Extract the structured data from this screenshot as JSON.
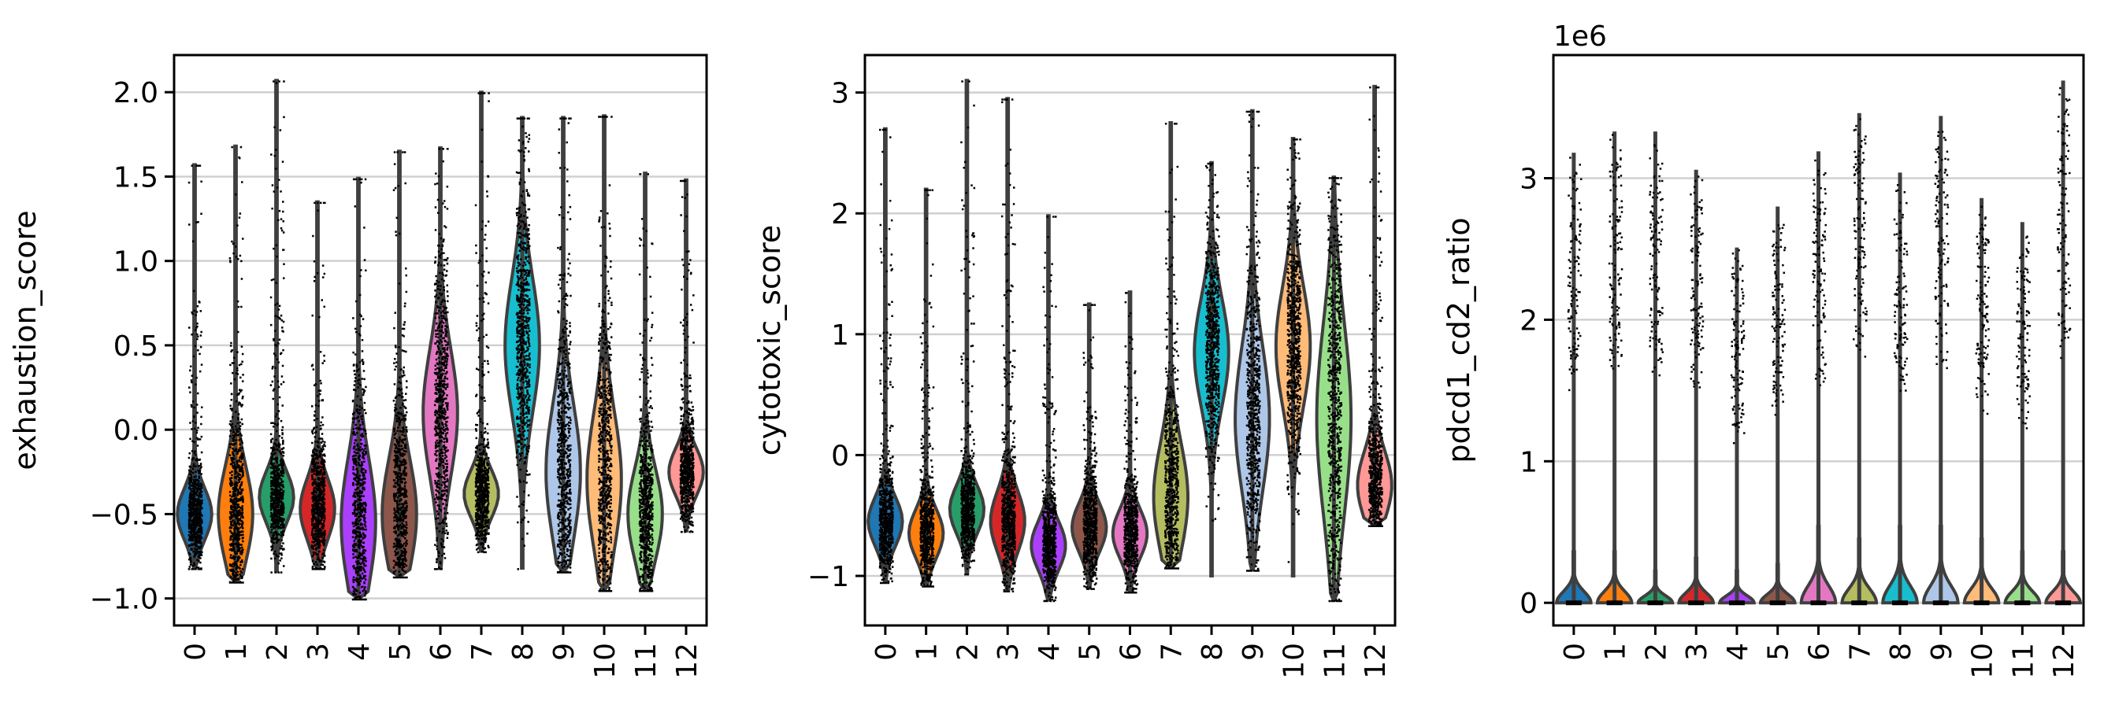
{
  "chart_data": [
    {
      "type": "violin",
      "ylabel": "exhaustion_score",
      "categories": [
        "0",
        "1",
        "2",
        "3",
        "4",
        "5",
        "6",
        "7",
        "8",
        "9",
        "10",
        "11",
        "12"
      ],
      "ylim": [
        -1.16,
        2.22
      ],
      "yticks": [
        -1.0,
        -0.5,
        0.0,
        0.5,
        1.0,
        1.5,
        2.0
      ],
      "ytick_labels": [
        "−1.0",
        "−0.5",
        "0.0",
        "0.5",
        "1.0",
        "1.5",
        "2.0"
      ],
      "grid": "y",
      "series": [
        {
          "min": -0.82,
          "max": 1.57,
          "median": -0.5,
          "spread": 0.15
        },
        {
          "min": -0.9,
          "max": 1.68,
          "median": -0.5,
          "spread": 0.28
        },
        {
          "min": -0.84,
          "max": 2.07,
          "median": -0.4,
          "spread": 0.15
        },
        {
          "min": -0.82,
          "max": 1.35,
          "median": -0.47,
          "spread": 0.18
        },
        {
          "min": -1.0,
          "max": 1.49,
          "median": -0.55,
          "spread": 0.38
        },
        {
          "min": -0.87,
          "max": 1.65,
          "median": -0.5,
          "spread": 0.33
        },
        {
          "min": -0.82,
          "max": 1.67,
          "median": 0.1,
          "spread": 0.38
        },
        {
          "min": -0.72,
          "max": 2.0,
          "median": -0.38,
          "spread": 0.14
        },
        {
          "min": -0.82,
          "max": 1.85,
          "median": 0.5,
          "spread": 0.4
        },
        {
          "min": -0.84,
          "max": 1.85,
          "median": -0.25,
          "spread": 0.4
        },
        {
          "min": -0.95,
          "max": 1.86,
          "median": -0.3,
          "spread": 0.4
        },
        {
          "min": -0.95,
          "max": 1.52,
          "median": -0.5,
          "spread": 0.27
        },
        {
          "min": -0.6,
          "max": 1.48,
          "median": -0.25,
          "spread": 0.14
        }
      ]
    },
    {
      "type": "violin",
      "ylabel": "cytotoxic_score",
      "categories": [
        "0",
        "1",
        "2",
        "3",
        "4",
        "5",
        "6",
        "7",
        "8",
        "9",
        "10",
        "11",
        "12"
      ],
      "ylim": [
        -1.41,
        3.31
      ],
      "yticks": [
        -1,
        0,
        1,
        2,
        3
      ],
      "ytick_labels": [
        "−1",
        "0",
        "1",
        "2",
        "3"
      ],
      "grid": "y",
      "series": [
        {
          "min": -1.05,
          "max": 2.7,
          "median": -0.55,
          "spread": 0.2
        },
        {
          "min": -1.08,
          "max": 2.2,
          "median": -0.65,
          "spread": 0.2
        },
        {
          "min": -0.98,
          "max": 3.1,
          "median": -0.45,
          "spread": 0.2
        },
        {
          "min": -1.12,
          "max": 2.95,
          "median": -0.55,
          "spread": 0.25
        },
        {
          "min": -1.2,
          "max": 1.98,
          "median": -0.75,
          "spread": 0.2
        },
        {
          "min": -1.1,
          "max": 1.25,
          "median": -0.6,
          "spread": 0.2
        },
        {
          "min": -1.13,
          "max": 1.35,
          "median": -0.65,
          "spread": 0.2
        },
        {
          "min": -0.93,
          "max": 2.75,
          "median": -0.35,
          "spread": 0.45
        },
        {
          "min": -1.0,
          "max": 2.42,
          "median": 0.85,
          "spread": 0.45
        },
        {
          "min": -0.95,
          "max": 2.85,
          "median": 0.3,
          "spread": 0.6
        },
        {
          "min": -1.0,
          "max": 2.62,
          "median": 0.9,
          "spread": 0.5
        },
        {
          "min": -1.2,
          "max": 2.3,
          "median": 0.3,
          "spread": 0.8
        },
        {
          "min": -0.58,
          "max": 3.05,
          "median": -0.25,
          "spread": 0.28
        }
      ]
    },
    {
      "type": "violin",
      "ylabel": "pdcd1_cd2_ratio",
      "offset_label": "1e6",
      "categories": [
        "0",
        "1",
        "2",
        "3",
        "4",
        "5",
        "6",
        "7",
        "8",
        "9",
        "10",
        "11",
        "12"
      ],
      "ylim": [
        -0.16,
        3.87
      ],
      "yticks": [
        0,
        1,
        2,
        3
      ],
      "ytick_labels": [
        "0",
        "1",
        "2",
        "3"
      ],
      "grid": "y",
      "series": [
        {
          "min": 0,
          "max": 3.18,
          "median": 0,
          "spread": 0.08
        },
        {
          "min": 0,
          "max": 3.33,
          "median": 0,
          "spread": 0.08
        },
        {
          "min": 0,
          "max": 3.33,
          "median": 0,
          "spread": 0.05
        },
        {
          "min": 0,
          "max": 3.06,
          "median": 0,
          "spread": 0.07
        },
        {
          "min": 0,
          "max": 2.51,
          "median": 0,
          "spread": 0.05
        },
        {
          "min": 0,
          "max": 2.8,
          "median": 0,
          "spread": 0.06
        },
        {
          "min": 0,
          "max": 3.19,
          "median": 0,
          "spread": 0.12
        },
        {
          "min": 0,
          "max": 3.46,
          "median": 0,
          "spread": 0.1
        },
        {
          "min": 0,
          "max": 3.04,
          "median": 0,
          "spread": 0.12
        },
        {
          "min": 0,
          "max": 3.44,
          "median": 0,
          "spread": 0.12
        },
        {
          "min": 0,
          "max": 2.86,
          "median": 0,
          "spread": 0.1
        },
        {
          "min": 0,
          "max": 2.69,
          "median": 0,
          "spread": 0.08
        },
        {
          "min": 0,
          "max": 3.69,
          "median": 0,
          "spread": 0.08
        }
      ]
    }
  ],
  "colors": [
    "#1f77b4",
    "#ff7f0e",
    "#279e68",
    "#d62728",
    "#aa40fc",
    "#8c564b",
    "#e377c2",
    "#b5bd61",
    "#17becf",
    "#aec7e8",
    "#ffbb78",
    "#98df8a",
    "#ff9896"
  ]
}
